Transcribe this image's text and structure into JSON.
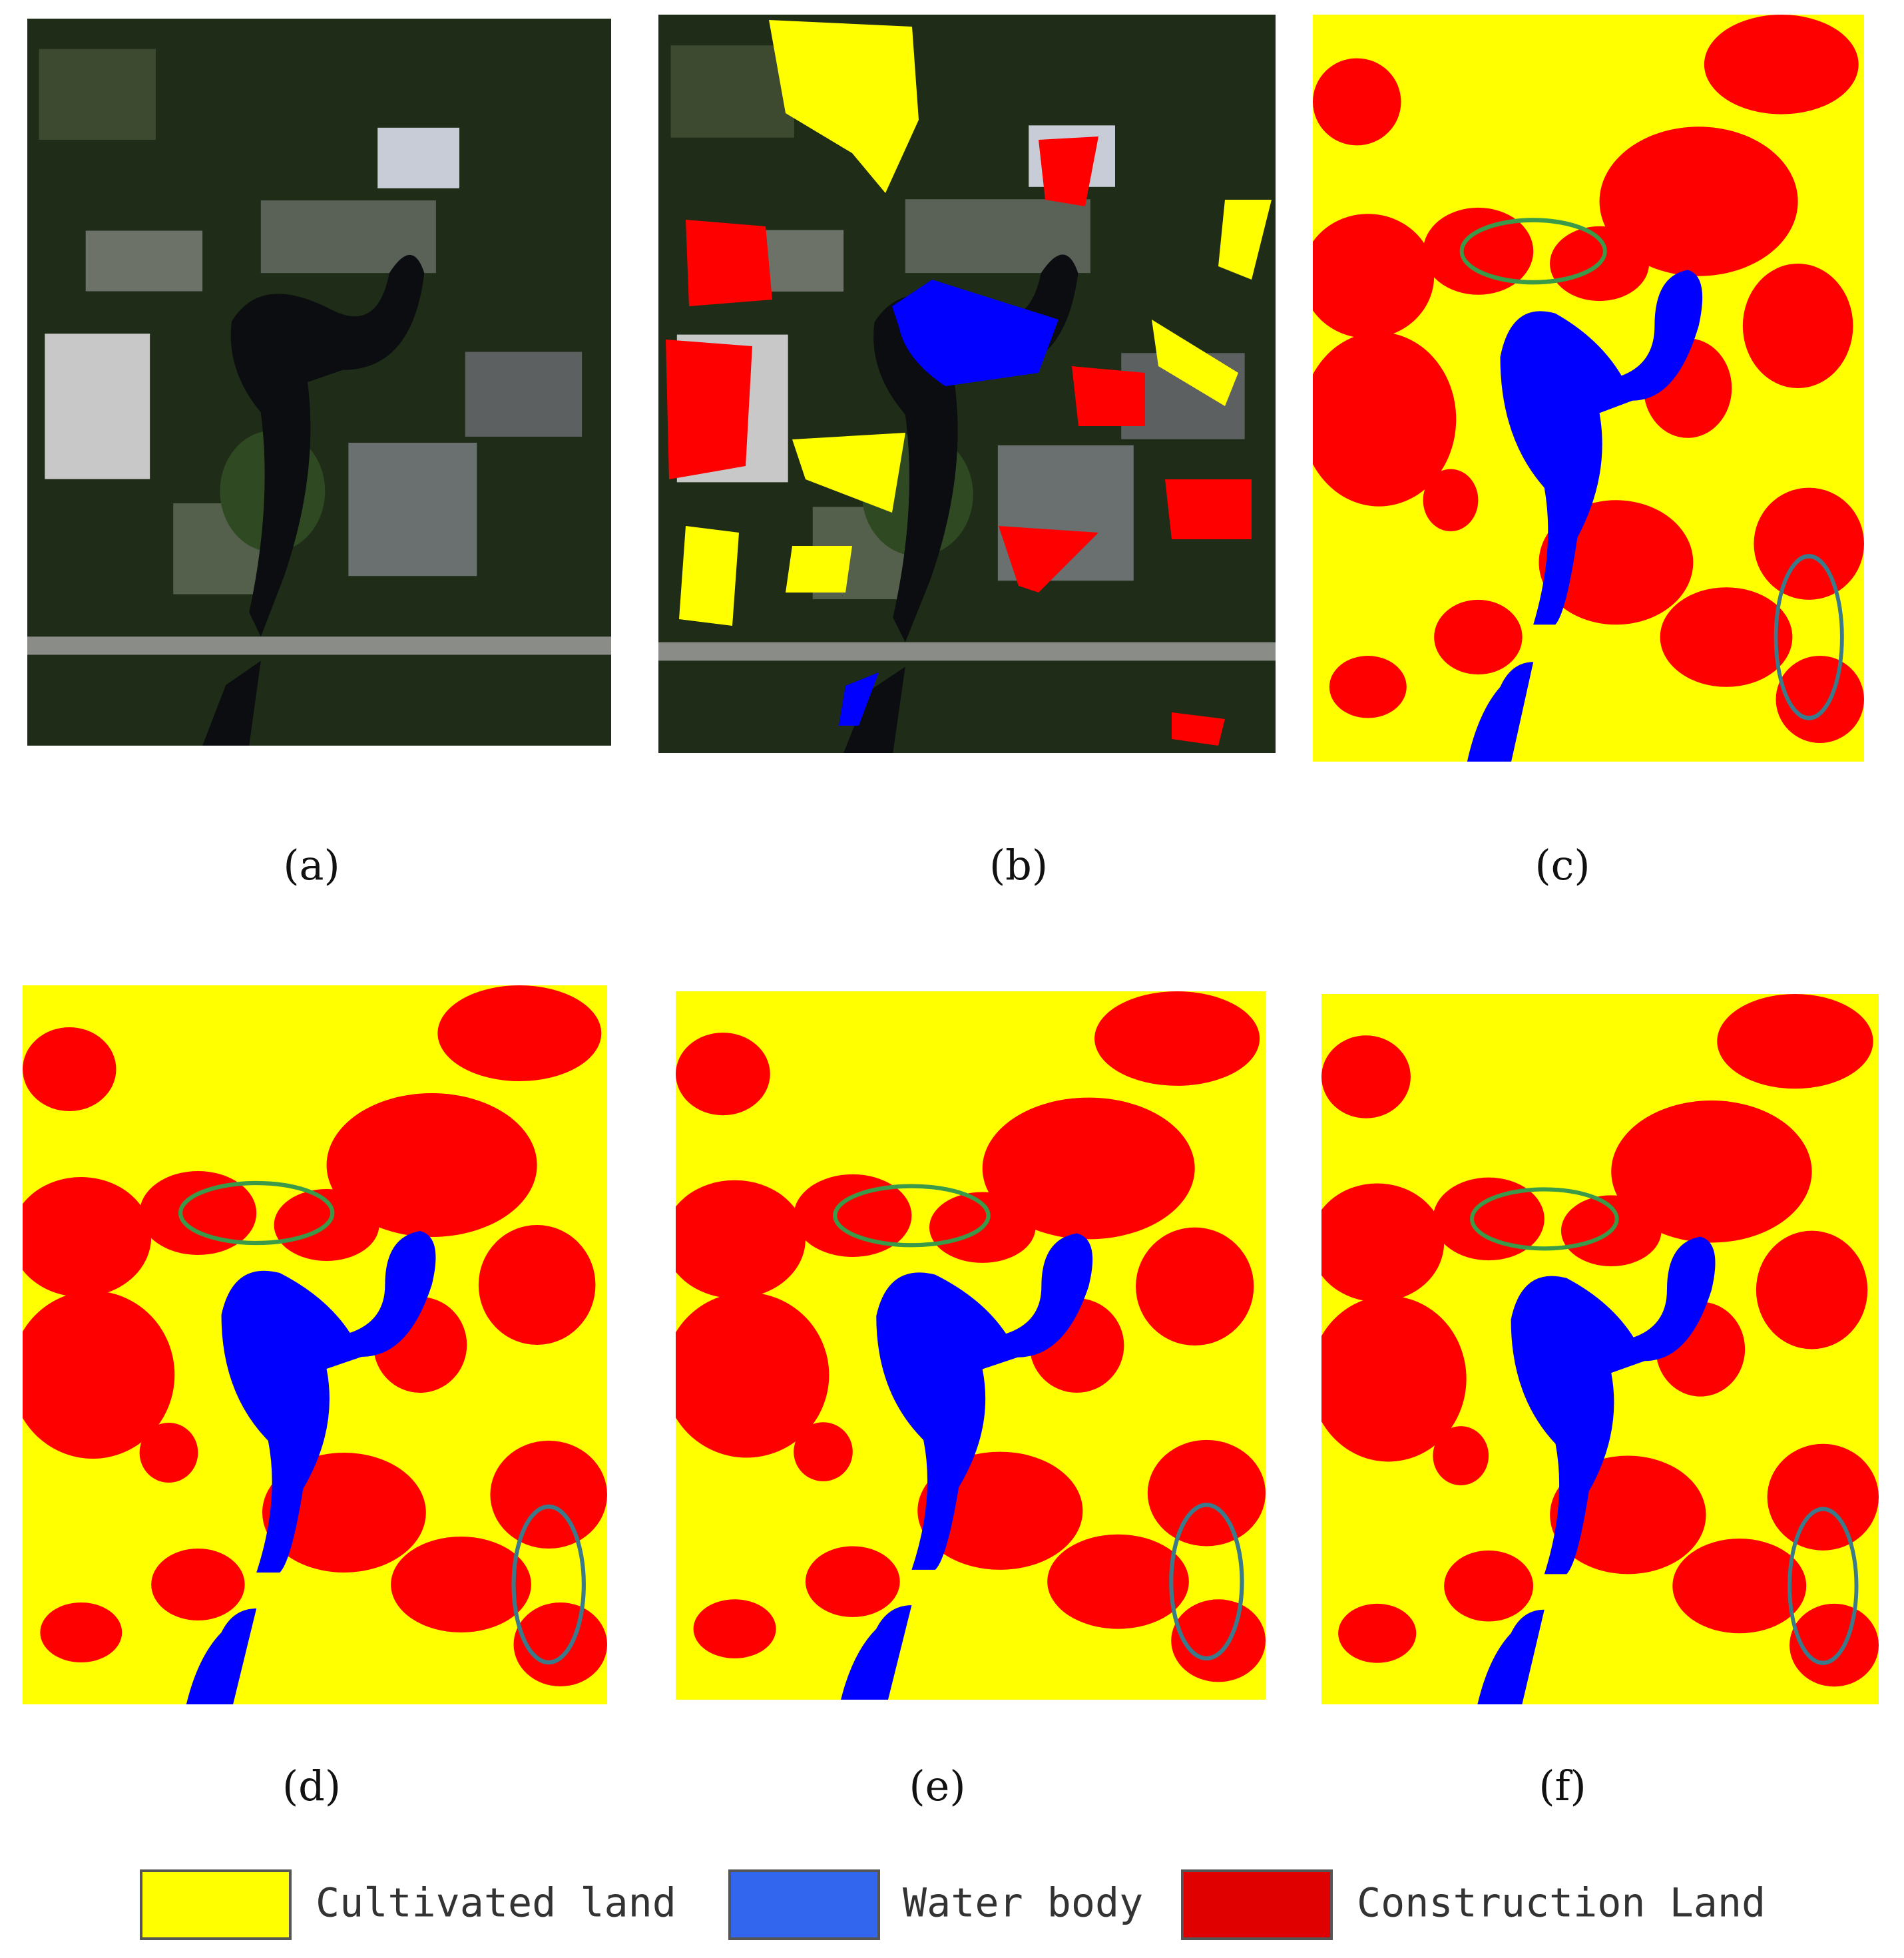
{
  "panels": [
    {
      "label": "(a)"
    },
    {
      "label": "(b)"
    },
    {
      "label": "(c)"
    },
    {
      "label": "(d)"
    },
    {
      "label": "(e)"
    },
    {
      "label": "(f)"
    }
  ],
  "legend": [
    {
      "label": "Cultivated land",
      "color": "#ffff00"
    },
    {
      "label": "Water body",
      "color": "#3366ee"
    },
    {
      "label": "Construction Land",
      "color": "#e00000"
    }
  ]
}
